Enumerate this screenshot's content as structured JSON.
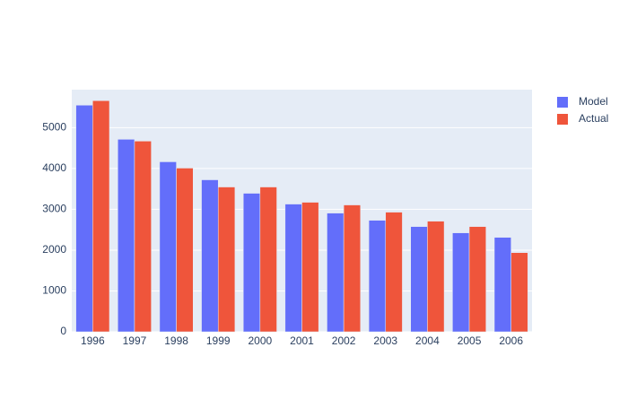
{
  "chart_data": {
    "type": "bar",
    "categories": [
      "1996",
      "1997",
      "1998",
      "1999",
      "2000",
      "2001",
      "2002",
      "2003",
      "2004",
      "2005",
      "2006"
    ],
    "series": [
      {
        "name": "Model",
        "color": "#636efa",
        "values": [
          5550,
          4714,
          4163,
          3722,
          3392,
          3128,
          2907,
          2731,
          2577,
          2423,
          2313
        ]
      },
      {
        "name": "Actual",
        "color": "#ef553b",
        "values": [
          5660,
          4670,
          4009,
          3546,
          3546,
          3172,
          3106,
          2930,
          2709,
          2577,
          1938
        ]
      }
    ],
    "ylim": [
      0,
      5930
    ],
    "yticks": [
      0,
      1000,
      2000,
      3000,
      4000,
      5000
    ],
    "grid": true,
    "legend": "right"
  }
}
